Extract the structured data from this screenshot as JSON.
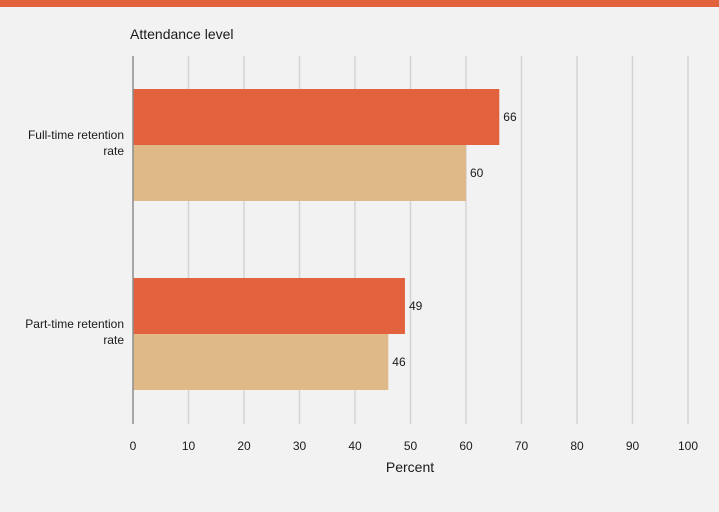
{
  "colors": {
    "top_bar": "#e2623e",
    "series_1": "#e2623e",
    "series_2": "#dfba88",
    "grid": "#d4d4d4",
    "axis": "#8c8c8c"
  },
  "chart_data": {
    "type": "bar",
    "orientation": "horizontal",
    "header_label": "Attendance level",
    "categories": [
      "Full-time retention rate",
      "Part-time retention rate"
    ],
    "category_lines": [
      [
        "Full-time retention",
        "rate"
      ],
      [
        "Part-time retention",
        "rate"
      ]
    ],
    "series": [
      {
        "values": [
          66,
          49
        ],
        "color": "#e2623e"
      },
      {
        "values": [
          60,
          46
        ],
        "color": "#dfba88"
      }
    ],
    "xlabel": "Percent",
    "ylabel": "",
    "xlim": [
      0,
      100
    ],
    "xticks": [
      0,
      10,
      20,
      30,
      40,
      50,
      60,
      70,
      80,
      90,
      100
    ],
    "grid": true,
    "legend": "none"
  }
}
